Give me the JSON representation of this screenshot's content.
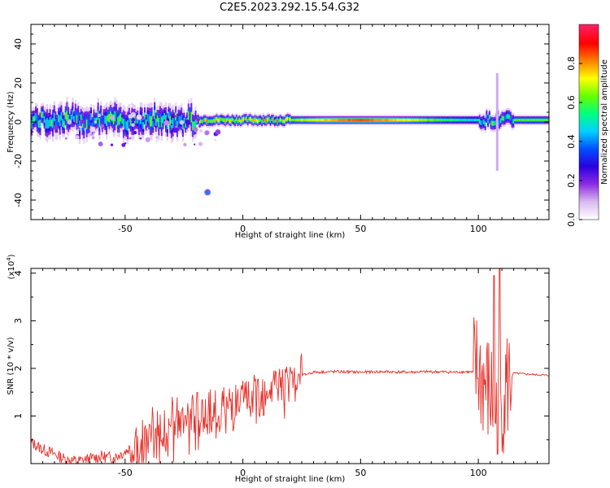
{
  "title": "C2E5.2023.292.15.54.G32",
  "chart_data": [
    {
      "type": "heatmap",
      "title": "C2E5.2023.292.15.54.G32",
      "xlabel": "Height of straight line (km)",
      "ylabel": "Frequency (Hz)",
      "xlim": [
        -90,
        130
      ],
      "ylim": [
        -50,
        50
      ],
      "xticks": [
        -50,
        0,
        50,
        100
      ],
      "yticks": [
        -40,
        -20,
        0,
        20,
        40
      ],
      "colorbar": {
        "label": "Normalized spectral amplitude",
        "range": [
          0,
          1
        ],
        "ticks": [
          "0.0",
          "0.2",
          "0.4",
          "0.6",
          "0.8"
        ],
        "colormap": [
          "#ffffff",
          "#d8b8f0",
          "#8a2be2",
          "#2a00e0",
          "#0050ff",
          "#00d0ff",
          "#00ff80",
          "#66ff00",
          "#ffff00",
          "#ff8000",
          "#ff0000",
          "#ff2060"
        ]
      },
      "features": [
        {
          "name": "band",
          "x_range": [
            -90,
            130
          ],
          "center_hz": 1,
          "amplitude_peak": 0.85
        },
        {
          "name": "blob",
          "x": -15,
          "y_hz": -36,
          "amplitude": 0.4
        },
        {
          "name": "spike",
          "x": 108,
          "y_range_hz": [
            -25,
            25
          ],
          "amplitude": 0.2
        }
      ]
    },
    {
      "type": "line",
      "xlabel": "Height of straight line (km)",
      "ylabel": "SNR (10 * v/v)",
      "exponent_label": "(x10",
      "exponent_power": "4",
      "exponent_close": ")",
      "xlim": [
        -90,
        130
      ],
      "ylim": [
        0,
        4.1
      ],
      "xticks": [
        -50,
        0,
        50,
        100
      ],
      "yticks": [
        1,
        2,
        3,
        4
      ],
      "color": "#e8302a",
      "series": [
        {
          "x": [
            -90,
            -85,
            -80,
            -75,
            -70,
            -65,
            -60,
            -55,
            -50,
            -45,
            -40,
            -35,
            -30,
            -25,
            -20,
            -15,
            -10,
            -5,
            0,
            5,
            10,
            15,
            20,
            25,
            30,
            40,
            50,
            60,
            70,
            80,
            90,
            95,
            100,
            103,
            106,
            108,
            110,
            113,
            115,
            120,
            130
          ],
          "values": [
            0.45,
            0.3,
            0.2,
            0.08,
            0.05,
            0.1,
            0.15,
            0.12,
            0.25,
            0.45,
            0.6,
            0.75,
            0.8,
            0.9,
            0.95,
            1.05,
            1.1,
            1.2,
            1.25,
            1.4,
            1.55,
            1.65,
            1.75,
            1.85,
            1.92,
            1.93,
            1.92,
            1.93,
            1.92,
            1.93,
            1.92,
            1.93,
            1.9,
            1.6,
            1.3,
            0.9,
            1.4,
            1.7,
            1.9,
            1.88,
            1.85
          ]
        }
      ]
    }
  ]
}
